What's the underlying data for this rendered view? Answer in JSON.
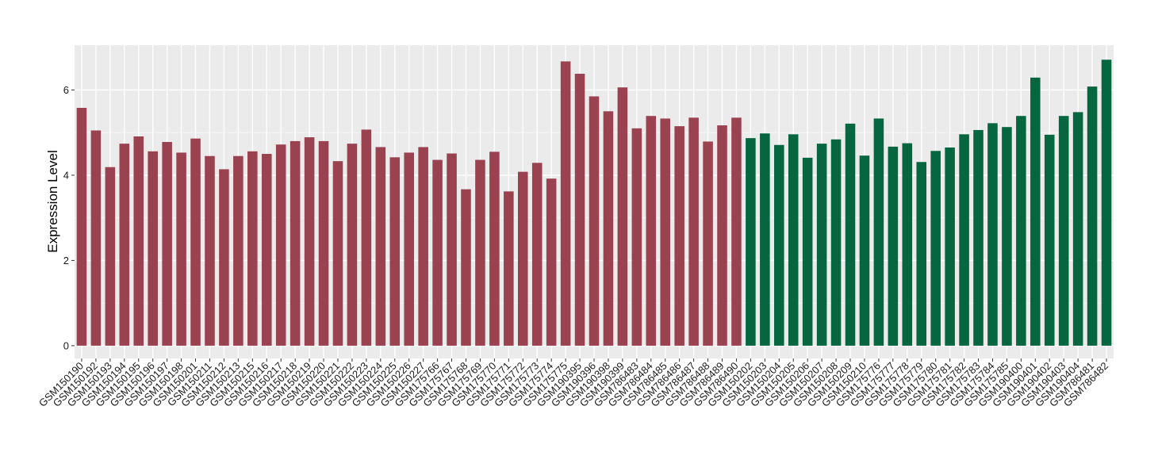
{
  "chart_data": {
    "type": "bar",
    "title": "",
    "xlabel": "",
    "ylabel": "Expression Level",
    "ylim": [
      -0.3,
      7.05
    ],
    "yticks": [
      0,
      2,
      4,
      6
    ],
    "grid": true,
    "legend": "none",
    "colors": {
      "group_a": "#9a4250",
      "group_b": "#066640",
      "panel": "#ebebeb",
      "grid": "#ffffff"
    },
    "categories": [
      "GSM150190",
      "GSM150192",
      "GSM150193",
      "GSM150194",
      "GSM150195",
      "GSM150196",
      "GSM150197",
      "GSM150198",
      "GSM150201",
      "GSM150211",
      "GSM150212",
      "GSM150213",
      "GSM150215",
      "GSM150216",
      "GSM150217",
      "GSM150218",
      "GSM150219",
      "GSM150220",
      "GSM150221",
      "GSM150222",
      "GSM150223",
      "GSM150224",
      "GSM150225",
      "GSM150226",
      "GSM150227",
      "GSM175766",
      "GSM175767",
      "GSM175768",
      "GSM175769",
      "GSM175770",
      "GSM175771",
      "GSM175772",
      "GSM175773",
      "GSM175774",
      "GSM175775",
      "GSM190395",
      "GSM190396",
      "GSM190398",
      "GSM190399",
      "GSM786483",
      "GSM786484",
      "GSM786485",
      "GSM786486",
      "GSM786487",
      "GSM786488",
      "GSM786489",
      "GSM786490",
      "GSM150202",
      "GSM150203",
      "GSM150204",
      "GSM150205",
      "GSM150206",
      "GSM150207",
      "GSM150208",
      "GSM150209",
      "GSM150210",
      "GSM175776",
      "GSM175777",
      "GSM175778",
      "GSM175779",
      "GSM175780",
      "GSM175781",
      "GSM175782",
      "GSM175783",
      "GSM175784",
      "GSM175785",
      "GSM190400",
      "GSM190401",
      "GSM190402",
      "GSM190403",
      "GSM190404",
      "GSM786481",
      "GSM786482"
    ],
    "values": [
      5.58,
      5.05,
      4.19,
      4.74,
      4.91,
      4.56,
      4.78,
      4.53,
      4.86,
      4.45,
      4.14,
      4.45,
      4.56,
      4.5,
      4.72,
      4.8,
      4.89,
      4.8,
      4.33,
      4.74,
      5.07,
      4.66,
      4.42,
      4.53,
      4.66,
      4.36,
      4.51,
      3.67,
      4.36,
      4.55,
      3.62,
      4.08,
      4.29,
      3.92,
      6.67,
      6.38,
      5.85,
      5.5,
      6.06,
      5.1,
      5.39,
      5.33,
      5.15,
      5.35,
      4.79,
      5.17,
      5.35,
      4.87,
      4.98,
      4.71,
      4.96,
      4.41,
      4.74,
      4.84,
      5.21,
      4.46,
      5.33,
      4.67,
      4.75,
      4.31,
      4.57,
      4.65,
      4.96,
      5.06,
      5.22,
      5.13,
      5.39,
      6.29,
      4.95,
      5.39,
      5.48,
      6.08,
      6.71
    ],
    "groups": [
      "a",
      "a",
      "a",
      "a",
      "a",
      "a",
      "a",
      "a",
      "a",
      "a",
      "a",
      "a",
      "a",
      "a",
      "a",
      "a",
      "a",
      "a",
      "a",
      "a",
      "a",
      "a",
      "a",
      "a",
      "a",
      "a",
      "a",
      "a",
      "a",
      "a",
      "a",
      "a",
      "a",
      "a",
      "a",
      "a",
      "a",
      "a",
      "a",
      "a",
      "a",
      "a",
      "a",
      "a",
      "a",
      "a",
      "a",
      "b",
      "b",
      "b",
      "b",
      "b",
      "b",
      "b",
      "b",
      "b",
      "b",
      "b",
      "b",
      "b",
      "b",
      "b",
      "b",
      "b",
      "b",
      "b",
      "b",
      "b",
      "b",
      "b",
      "b",
      "b",
      "b"
    ]
  }
}
